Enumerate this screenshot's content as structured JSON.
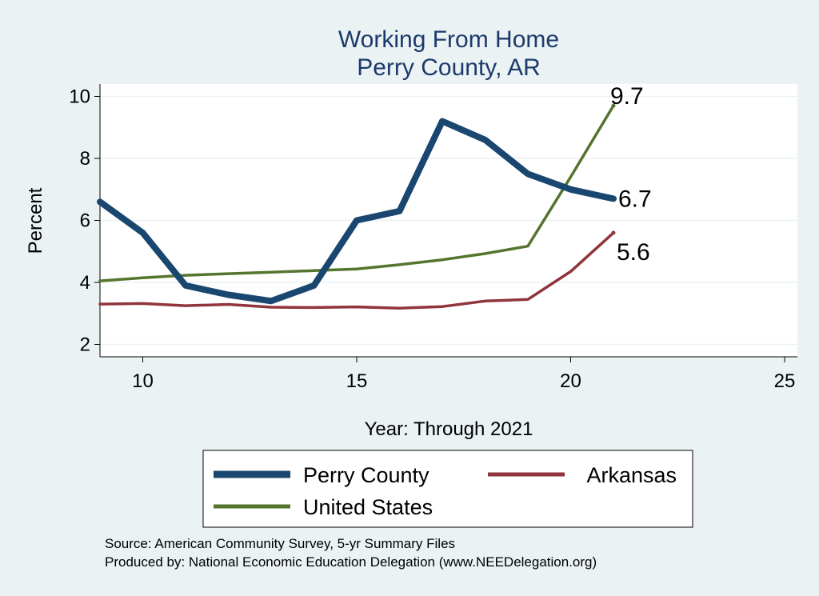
{
  "chart_data": {
    "type": "line",
    "title": "Working From Home",
    "subtitle": "Perry County, AR",
    "xlabel": "Year: Through 2021",
    "ylabel": "Percent",
    "xlim": [
      9,
      25.3
    ],
    "ylim": [
      1.6,
      10.4
    ],
    "xticks": [
      10,
      15,
      20,
      25
    ],
    "yticks": [
      2,
      4,
      6,
      8,
      10
    ],
    "grid": true,
    "legend_position": "bottom",
    "series": [
      {
        "name": "Perry County",
        "color": "#1a476f",
        "x": [
          9,
          10,
          11,
          12,
          13,
          14,
          15,
          16,
          17,
          18,
          19,
          20,
          21
        ],
        "values": [
          6.6,
          5.6,
          3.9,
          3.6,
          3.4,
          3.9,
          6.0,
          6.3,
          9.2,
          8.6,
          7.5,
          7.0,
          6.7
        ],
        "end_label": "6.7"
      },
      {
        "name": "Arkansas",
        "color": "#90353b",
        "x": [
          9,
          10,
          11,
          12,
          13,
          14,
          15,
          16,
          17,
          18,
          19,
          20,
          21
        ],
        "values": [
          3.3,
          3.32,
          3.25,
          3.29,
          3.2,
          3.19,
          3.21,
          3.17,
          3.22,
          3.4,
          3.45,
          4.35,
          5.6
        ],
        "end_label": "5.6"
      },
      {
        "name": "United States",
        "color": "#55752f",
        "x": [
          9,
          10,
          11,
          12,
          13,
          14,
          15,
          16,
          17,
          18,
          19,
          20,
          21
        ],
        "values": [
          4.05,
          4.15,
          4.23,
          4.28,
          4.33,
          4.38,
          4.43,
          4.57,
          4.73,
          4.93,
          5.17,
          7.4,
          9.7
        ],
        "end_label": "9.7"
      }
    ],
    "notes": [
      "Source: American Community Survey, 5-yr Summary Files",
      "Produced by: National Economic Education Delegation (www.NEEDelegation.org)"
    ]
  }
}
